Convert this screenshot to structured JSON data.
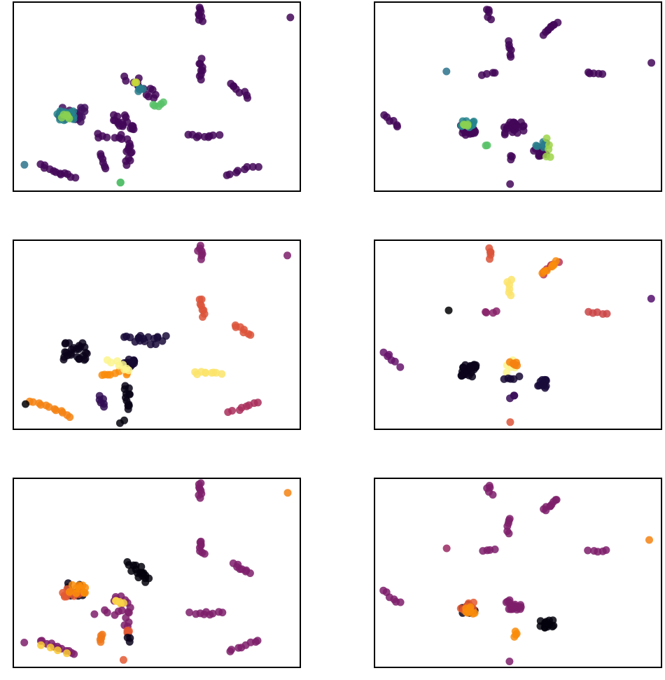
{
  "chart_data": [
    {
      "type": "scatter",
      "panel": "top-left",
      "colormap": "viridis",
      "xlim": [
        0,
        100
      ],
      "ylim": [
        0,
        100
      ],
      "grid": false,
      "axes_ticks": false,
      "clusters": [
        {
          "x": 64.5,
          "y": 94,
          "dx": 0.5,
          "dy": -4,
          "n": 8,
          "c": 0.02
        },
        {
          "x": 95.5,
          "y": 93,
          "dx": 0,
          "dy": 0,
          "n": 1,
          "c": 0.02
        },
        {
          "x": 64.8,
          "y": 65,
          "dx": 0.3,
          "dy": -5,
          "n": 9,
          "c": 0.02
        },
        {
          "x": 78,
          "y": 54,
          "dx": 3,
          "dy": -3.5,
          "n": 8,
          "c": 0.02
        },
        {
          "x": 66,
          "y": 30,
          "dx": 5,
          "dy": 0,
          "n": 9,
          "c": 0.02
        },
        {
          "x": 79,
          "y": 12,
          "dx": 5,
          "dy": 2.5,
          "n": 8,
          "c": 0.02
        },
        {
          "x": 15,
          "y": 11.5,
          "dx": 6,
          "dy": -3.5,
          "n": 12,
          "c": 0.02
        },
        {
          "x": 30.5,
          "y": 17,
          "dx": 0.5,
          "dy": -4,
          "n": 6,
          "c": 0.02
        },
        {
          "x": 4,
          "y": 14.5,
          "dx": 0,
          "dy": 0,
          "n": 1,
          "c": 0.38
        },
        {
          "x": 37.5,
          "y": 5,
          "dx": 0,
          "dy": 0,
          "n": 2,
          "c": 0.7
        },
        {
          "x": 20,
          "y": 41,
          "dx": 0,
          "dy": 0,
          "n": 22,
          "s": 4.5,
          "c": 0.05
        },
        {
          "x": 18,
          "y": 41,
          "dx": 0,
          "dy": 0,
          "n": 16,
          "s": 3,
          "c": 0.45
        },
        {
          "x": 18,
          "y": 40,
          "dx": 0,
          "dy": 0,
          "n": 5,
          "s": 2,
          "c": 0.82
        },
        {
          "x": 38,
          "y": 37.5,
          "dx": 2,
          "dy": -3,
          "n": 18,
          "s": 2.5,
          "c": 0.02
        },
        {
          "x": 33,
          "y": 30,
          "dx": 5,
          "dy": 0,
          "n": 8,
          "s": 1.5,
          "c": 0.02
        },
        {
          "x": 39.5,
          "y": 22,
          "dx": 0.5,
          "dy": -6,
          "n": 12,
          "s": 1.2,
          "c": 0.02
        },
        {
          "x": 45,
          "y": 55,
          "dx": 5,
          "dy": -5,
          "n": 14,
          "s": 2,
          "c": 0.02
        },
        {
          "x": 44,
          "y": 55,
          "dx": 1,
          "dy": 0,
          "n": 5,
          "s": 1.5,
          "c": 0.42
        },
        {
          "x": 50,
          "y": 47,
          "dx": 3,
          "dy": 0,
          "n": 5,
          "s": 1.5,
          "c": 0.72
        },
        {
          "x": 42.5,
          "y": 58.5,
          "dx": 0,
          "dy": 0,
          "n": 2,
          "s": 1,
          "c": 0.92
        }
      ]
    },
    {
      "type": "scatter",
      "panel": "top-right",
      "colormap": "viridis",
      "xlim": [
        0,
        100
      ],
      "ylim": [
        0,
        100
      ],
      "grid": false,
      "axes_ticks": false,
      "clusters": [
        {
          "x": 39.5,
          "y": 94.5,
          "dx": 0.5,
          "dy": -2.5,
          "n": 5,
          "c": 0.02
        },
        {
          "x": 60.5,
          "y": 86.5,
          "dx": 2.5,
          "dy": 3,
          "n": 9,
          "c": 0.02
        },
        {
          "x": 46.5,
          "y": 75.5,
          "dx": 0,
          "dy": -4,
          "n": 6,
          "c": 0.02
        },
        {
          "x": 39.5,
          "y": 62.5,
          "dx": 2,
          "dy": 0,
          "n": 4,
          "c": 0.02
        },
        {
          "x": 76.5,
          "y": 62.5,
          "dx": 3,
          "dy": -0.5,
          "n": 5,
          "c": 0.02
        },
        {
          "x": 95.5,
          "y": 69,
          "dx": 0,
          "dy": 0,
          "n": 1,
          "c": 0.02
        },
        {
          "x": 25,
          "y": 64,
          "dx": 0,
          "dy": 0,
          "n": 1,
          "c": 0.38
        },
        {
          "x": 5.5,
          "y": 38,
          "dx": 2.5,
          "dy": -3.5,
          "n": 6,
          "c": 0.02
        },
        {
          "x": 47,
          "y": 5,
          "dx": 0,
          "dy": 0,
          "n": 1,
          "c": 0.02
        },
        {
          "x": 47.5,
          "y": 18.5,
          "dx": 0,
          "dy": -1,
          "n": 3,
          "c": 0.02
        },
        {
          "x": 32,
          "y": 33,
          "dx": 0,
          "dy": 0,
          "n": 18,
          "s": 3,
          "c": 0.02
        },
        {
          "x": 32,
          "y": 36,
          "dx": 0,
          "dy": 0,
          "n": 14,
          "s": 2.2,
          "c": 0.45
        },
        {
          "x": 31.5,
          "y": 36,
          "dx": 0,
          "dy": 0,
          "n": 4,
          "s": 1.2,
          "c": 0.82
        },
        {
          "x": 38.5,
          "y": 25.5,
          "dx": 0,
          "dy": 0,
          "n": 2,
          "s": 1,
          "c": 0.72
        },
        {
          "x": 48,
          "y": 34,
          "dx": 0,
          "dy": 0,
          "n": 24,
          "s": 3.5,
          "c": 0.02
        },
        {
          "x": 57.5,
          "y": 23,
          "dx": 1,
          "dy": 2,
          "n": 12,
          "s": 2.2,
          "c": 0.02
        },
        {
          "x": 57,
          "y": 25,
          "dx": 1,
          "dy": 1,
          "n": 6,
          "s": 2,
          "c": 0.42
        },
        {
          "x": 59.5,
          "y": 23,
          "dx": 0,
          "dy": 5,
          "n": 5,
          "s": 1.5,
          "c": 0.85
        }
      ]
    },
    {
      "type": "scatter",
      "panel": "middle-left",
      "colormap": "inferno",
      "xlim": [
        0,
        100
      ],
      "ylim": [
        0,
        100
      ],
      "grid": false,
      "axes_ticks": false,
      "clusters": [
        {
          "x": 64.5,
          "y": 94,
          "dx": 0.3,
          "dy": -3,
          "n": 7,
          "c": 0.42
        },
        {
          "x": 95.5,
          "y": 93,
          "dx": 0,
          "dy": 0,
          "n": 1,
          "c": 0.42
        },
        {
          "x": 65,
          "y": 65,
          "dx": 0.5,
          "dy": -5,
          "n": 8,
          "c": 0.7
        },
        {
          "x": 79,
          "y": 53,
          "dx": 3,
          "dy": -3,
          "n": 7,
          "c": 0.7
        },
        {
          "x": 67,
          "y": 30.5,
          "dx": 5,
          "dy": 0,
          "n": 9,
          "c": 0.95
        },
        {
          "x": 80,
          "y": 13,
          "dx": 5,
          "dy": 2.5,
          "n": 8,
          "c": 0.55
        },
        {
          "x": 13,
          "y": 12,
          "dx": 7,
          "dy": -4,
          "n": 12,
          "c": 0.8
        },
        {
          "x": 4,
          "y": 14.5,
          "dx": 0,
          "dy": 0,
          "n": 1,
          "c": 0.0
        },
        {
          "x": 37.5,
          "y": 5,
          "dx": 0,
          "dy": 0,
          "n": 2,
          "c": 0.02
        },
        {
          "x": 30.5,
          "y": 16,
          "dx": 0.5,
          "dy": -3,
          "n": 6,
          "c": 0.2
        },
        {
          "x": 21,
          "y": 42,
          "dx": 0,
          "dy": 0,
          "n": 26,
          "s": 4.5,
          "c": 0.05
        },
        {
          "x": 39.5,
          "y": 18,
          "dx": 0.5,
          "dy": -6,
          "n": 12,
          "s": 1.2,
          "c": 0.04
        },
        {
          "x": 40,
          "y": 36,
          "dx": 0,
          "dy": 0,
          "n": 12,
          "s": 2,
          "c": 0.1
        },
        {
          "x": 34.5,
          "y": 30.5,
          "dx": 5,
          "dy": 0,
          "n": 8,
          "s": 1.2,
          "c": 0.82
        },
        {
          "x": 36.5,
          "y": 35,
          "dx": 4,
          "dy": -3,
          "n": 8,
          "s": 1.2,
          "c": 0.98
        },
        {
          "x": 46,
          "y": 48,
          "dx": 6,
          "dy": 0,
          "n": 18,
          "s": 2.5,
          "c": 0.12
        }
      ]
    },
    {
      "type": "scatter",
      "panel": "middle-right",
      "colormap": "inferno",
      "xlim": [
        0,
        100
      ],
      "ylim": [
        0,
        100
      ],
      "grid": false,
      "axes_ticks": false,
      "clusters": [
        {
          "x": 39.5,
          "y": 93.5,
          "dx": 0.5,
          "dy": -2.5,
          "n": 5,
          "c": 0.7
        },
        {
          "x": 60.5,
          "y": 86,
          "dx": 2.5,
          "dy": 3,
          "n": 9,
          "c": 0.6
        },
        {
          "x": 60.5,
          "y": 86,
          "dx": 2.5,
          "dy": 3,
          "n": 7,
          "c": 0.82
        },
        {
          "x": 46.5,
          "y": 75.5,
          "dx": 0,
          "dy": -4,
          "n": 6,
          "c": 0.95
        },
        {
          "x": 39.5,
          "y": 62.5,
          "dx": 2,
          "dy": 0,
          "n": 4,
          "c": 0.45
        },
        {
          "x": 77,
          "y": 62.5,
          "dx": 3,
          "dy": -0.5,
          "n": 5,
          "c": 0.65
        },
        {
          "x": 95.5,
          "y": 69,
          "dx": 0,
          "dy": 0,
          "n": 1,
          "c": 0.3
        },
        {
          "x": 25,
          "y": 64,
          "dx": 0,
          "dy": 0,
          "n": 1,
          "c": 0.0
        },
        {
          "x": 5.5,
          "y": 38,
          "dx": 2.5,
          "dy": -3.5,
          "n": 6,
          "c": 0.35
        },
        {
          "x": 47,
          "y": 5,
          "dx": 0,
          "dy": 0,
          "n": 1,
          "c": 0.7
        },
        {
          "x": 47.5,
          "y": 18.5,
          "dx": 0,
          "dy": -1,
          "n": 3,
          "c": 0.22
        },
        {
          "x": 32,
          "y": 32,
          "dx": 0,
          "dy": 0,
          "n": 26,
          "s": 3.2,
          "c": 0.05
        },
        {
          "x": 47.5,
          "y": 34.5,
          "dx": 1,
          "dy": 2.5,
          "n": 8,
          "s": 1.5,
          "c": 0.98
        },
        {
          "x": 48,
          "y": 36,
          "dx": 0,
          "dy": 0,
          "n": 6,
          "s": 1.5,
          "c": 0.8
        },
        {
          "x": 47,
          "y": 28,
          "dx": 2,
          "dy": 0,
          "n": 5,
          "s": 1,
          "c": 0.1
        },
        {
          "x": 58,
          "y": 25,
          "dx": 1,
          "dy": 0,
          "n": 14,
          "s": 2.2,
          "c": 0.12
        }
      ]
    },
    {
      "type": "scatter",
      "panel": "bottom-left",
      "colormap": "inferno",
      "xlim": [
        0,
        100
      ],
      "ylim": [
        0,
        100
      ],
      "grid": false,
      "axes_ticks": false,
      "clusters": [
        {
          "x": 64.5,
          "y": 94,
          "dx": 0.3,
          "dy": -4,
          "n": 8,
          "c": 0.42
        },
        {
          "x": 95.5,
          "y": 92,
          "dx": 0,
          "dy": 0,
          "n": 1,
          "c": 0.8
        },
        {
          "x": 65,
          "y": 64,
          "dx": 0.5,
          "dy": -4,
          "n": 8,
          "c": 0.42
        },
        {
          "x": 79,
          "y": 53,
          "dx": 3,
          "dy": -3,
          "n": 8,
          "c": 0.42
        },
        {
          "x": 66.5,
          "y": 29.5,
          "dx": 5,
          "dy": 0,
          "n": 9,
          "c": 0.42
        },
        {
          "x": 79.5,
          "y": 12.5,
          "dx": 5,
          "dy": 2.5,
          "n": 8,
          "c": 0.42
        },
        {
          "x": 4,
          "y": 14.5,
          "dx": 0,
          "dy": 0,
          "n": 1,
          "c": 0.42
        },
        {
          "x": 15,
          "y": 11.5,
          "dx": 6,
          "dy": -3.5,
          "n": 12,
          "c": 0.42
        },
        {
          "x": 14,
          "y": 11,
          "dx": 4,
          "dy": -2,
          "n": 4,
          "c": 0.9
        },
        {
          "x": 30.5,
          "y": 17,
          "dx": 0,
          "dy": -2,
          "n": 5,
          "c": 0.78
        },
        {
          "x": 37.5,
          "y": 5,
          "dx": 0,
          "dy": 0,
          "n": 1,
          "c": 0.72
        },
        {
          "x": 43.5,
          "y": 51,
          "dx": 3,
          "dy": -4,
          "n": 18,
          "s": 2,
          "c": 0.02
        },
        {
          "x": 21,
          "y": 42,
          "dx": 0,
          "dy": 0,
          "n": 10,
          "s": 3.5,
          "c": 0.05
        },
        {
          "x": 20,
          "y": 41,
          "dx": 0,
          "dy": 0,
          "n": 12,
          "s": 3.2,
          "c": 0.72
        },
        {
          "x": 22,
          "y": 43,
          "dx": 0,
          "dy": 0,
          "n": 10,
          "s": 3,
          "c": 0.82
        },
        {
          "x": 37,
          "y": 36,
          "dx": 2,
          "dy": -2,
          "n": 10,
          "s": 2,
          "c": 0.42
        },
        {
          "x": 36.5,
          "y": 36,
          "dx": 0,
          "dy": 0,
          "n": 5,
          "s": 1.5,
          "c": 0.92
        },
        {
          "x": 33,
          "y": 30,
          "dx": 5,
          "dy": 0,
          "n": 6,
          "s": 1.5,
          "c": 0.42
        },
        {
          "x": 39.5,
          "y": 25,
          "dx": 0,
          "dy": -6,
          "n": 8,
          "s": 1.2,
          "c": 0.42
        },
        {
          "x": 39,
          "y": 20,
          "dx": 0,
          "dy": 0,
          "n": 3,
          "s": 1,
          "c": 0.72
        },
        {
          "x": 39.5,
          "y": 16,
          "dx": 0,
          "dy": -1,
          "n": 3,
          "s": 1,
          "c": 0.05
        }
      ]
    },
    {
      "type": "scatter",
      "panel": "bottom-right",
      "colormap": "inferno",
      "xlim": [
        0,
        100
      ],
      "ylim": [
        0,
        100
      ],
      "grid": false,
      "axes_ticks": false,
      "clusters": [
        {
          "x": 39.5,
          "y": 94.5,
          "dx": 0.5,
          "dy": -2.5,
          "n": 5,
          "c": 0.42
        },
        {
          "x": 60.5,
          "y": 86.5,
          "dx": 2.5,
          "dy": 3,
          "n": 9,
          "c": 0.42
        },
        {
          "x": 46.5,
          "y": 75.5,
          "dx": 0,
          "dy": -4,
          "n": 6,
          "c": 0.42
        },
        {
          "x": 39.5,
          "y": 62.5,
          "dx": 2,
          "dy": 0,
          "n": 4,
          "c": 0.42
        },
        {
          "x": 77,
          "y": 62.5,
          "dx": 3,
          "dy": -0.5,
          "n": 5,
          "c": 0.42
        },
        {
          "x": 95.5,
          "y": 68,
          "dx": 0,
          "dy": 0,
          "n": 1,
          "c": 0.8
        },
        {
          "x": 25,
          "y": 64,
          "dx": 0,
          "dy": 0,
          "n": 1,
          "c": 0.5
        },
        {
          "x": 5.5,
          "y": 38,
          "dx": 2.5,
          "dy": -3.5,
          "n": 6,
          "c": 0.42
        },
        {
          "x": 47,
          "y": 5,
          "dx": 0,
          "dy": 0,
          "n": 1,
          "c": 0.42
        },
        {
          "x": 32.5,
          "y": 32,
          "dx": 0,
          "dy": 0,
          "n": 10,
          "s": 2.5,
          "c": 0.05
        },
        {
          "x": 32,
          "y": 33,
          "dx": 0,
          "dy": 0,
          "n": 10,
          "s": 2.5,
          "c": 0.72
        },
        {
          "x": 33,
          "y": 31,
          "dx": 0,
          "dy": 0,
          "n": 8,
          "s": 2,
          "c": 0.82
        },
        {
          "x": 48,
          "y": 34,
          "dx": 0,
          "dy": 0,
          "n": 20,
          "s": 2.8,
          "c": 0.42
        },
        {
          "x": 48.5,
          "y": 19,
          "dx": 0,
          "dy": -1,
          "n": 4,
          "s": 1,
          "c": 0.82
        },
        {
          "x": 60,
          "y": 24,
          "dx": 1,
          "dy": 0,
          "n": 14,
          "s": 2.2,
          "c": 0.02
        }
      ]
    }
  ]
}
